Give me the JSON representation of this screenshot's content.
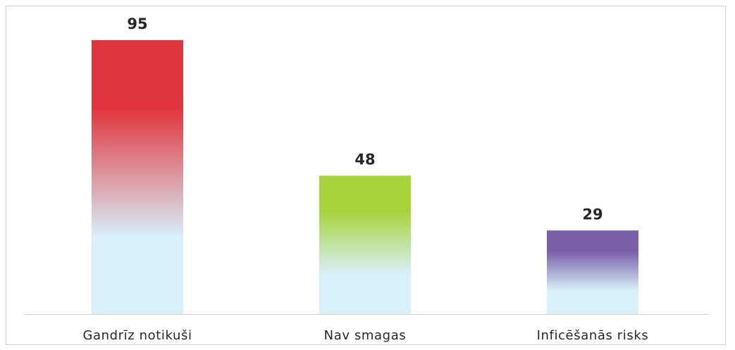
{
  "chart_data": {
    "type": "bar",
    "categories": [
      "Gandrīz notikuši",
      "Nav smagas",
      "Inficēšanās risks"
    ],
    "values": [
      95,
      48,
      29
    ],
    "title": "",
    "xlabel": "",
    "ylabel": "",
    "ylim": [
      0,
      95
    ],
    "grid": false,
    "legend": "none",
    "bar_colors": [
      {
        "top": "#e0353d",
        "bottom": "#d8f0fa"
      },
      {
        "top": "#a6d43a",
        "bottom": "#d8f0fa"
      },
      {
        "top": "#7b5ea8",
        "bottom": "#d8f0fa"
      }
    ],
    "axis_color": "#d0d0d0"
  }
}
